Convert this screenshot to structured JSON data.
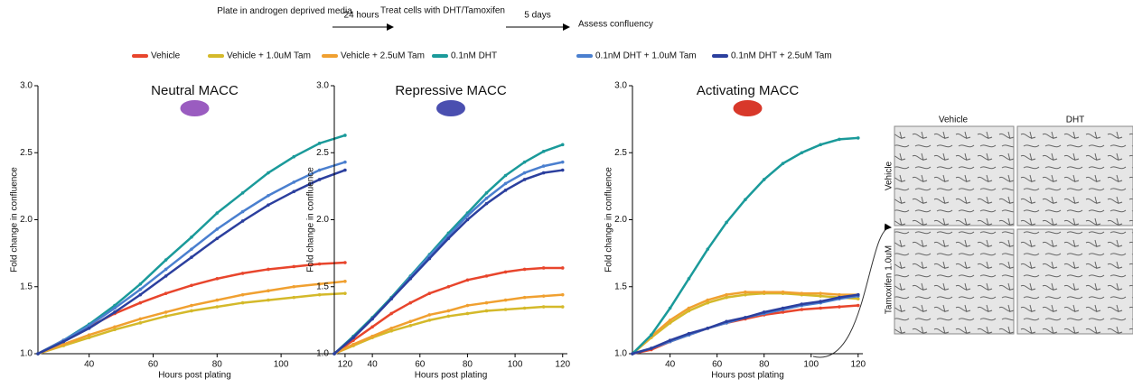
{
  "workflow": {
    "step1": "Plate in androgen deprived media",
    "step1_duration": "24 hours",
    "step2": "Treat cells with DHT/Tamoxifen",
    "step2_duration": "5 days",
    "step3": "Assess confluency"
  },
  "image_panel": {
    "columns": [
      "Vehicle",
      "DHT"
    ],
    "rows": [
      "Vehicle",
      "Tamoxifen 1.0uM"
    ]
  },
  "chart_data": [
    {
      "type": "line",
      "title": "Neutral MACC",
      "x_label": "Hours post plating",
      "y_label": "Fold change in confluence",
      "x": [
        24,
        32,
        40,
        48,
        56,
        64,
        72,
        80,
        88,
        96,
        104,
        112,
        120
      ],
      "xlim": [
        24,
        122
      ],
      "xticks": [
        40,
        60,
        80,
        100,
        120
      ],
      "ylim": [
        1,
        3
      ],
      "yticks": [
        {
          "value": 1,
          "label": "1.0"
        },
        {
          "value": 1.5,
          "label": "1.5"
        },
        {
          "value": 2,
          "label": "2.0"
        },
        {
          "value": 2.5,
          "label": "2.5"
        },
        {
          "value": 3,
          "label": "3.0"
        }
      ],
      "series": [
        {
          "name": "Vehicle",
          "color": "#e8452c",
          "values": [
            1.0,
            1.1,
            1.2,
            1.3,
            1.38,
            1.45,
            1.51,
            1.56,
            1.6,
            1.63,
            1.65,
            1.67,
            1.68
          ]
        },
        {
          "name": "Vehicle + 1.0uM Tam",
          "color": "#d4b92a",
          "values": [
            1.0,
            1.06,
            1.12,
            1.18,
            1.23,
            1.28,
            1.32,
            1.35,
            1.38,
            1.4,
            1.42,
            1.44,
            1.45
          ]
        },
        {
          "name": "Vehicle + 2.5uM Tam",
          "color": "#f0a030",
          "values": [
            1.0,
            1.07,
            1.14,
            1.2,
            1.26,
            1.31,
            1.36,
            1.4,
            1.44,
            1.47,
            1.5,
            1.52,
            1.54
          ]
        },
        {
          "name": "0.1nM DHT",
          "color": "#1a9a9a",
          "values": [
            1.0,
            1.1,
            1.22,
            1.36,
            1.52,
            1.7,
            1.87,
            2.05,
            2.2,
            2.35,
            2.47,
            2.57,
            2.63
          ]
        },
        {
          "name": "0.1nM DHT + 1.0uM Tam",
          "color": "#4a7fcf",
          "values": [
            1.0,
            1.1,
            1.21,
            1.34,
            1.48,
            1.63,
            1.78,
            1.93,
            2.06,
            2.18,
            2.28,
            2.37,
            2.43
          ]
        },
        {
          "name": "0.1nM DHT + 2.5uM Tam",
          "color": "#2b3f9e",
          "values": [
            1.0,
            1.09,
            1.19,
            1.31,
            1.44,
            1.58,
            1.72,
            1.86,
            1.99,
            2.11,
            2.21,
            2.3,
            2.37
          ]
        }
      ]
    },
    {
      "type": "line",
      "title": "Repressive MACC",
      "x_label": "Hours post plating",
      "y_label": "Fold change in confluence",
      "x": [
        24,
        32,
        40,
        48,
        56,
        64,
        72,
        80,
        88,
        96,
        104,
        112,
        120
      ],
      "xlim": [
        24,
        122
      ],
      "xticks": [
        40,
        60,
        80,
        100,
        120
      ],
      "ylim": [
        1,
        3
      ],
      "yticks": [
        {
          "value": 1,
          "label": "1.0"
        },
        {
          "value": 1.5,
          "label": "1.5"
        },
        {
          "value": 2,
          "label": "2.0"
        },
        {
          "value": 2.5,
          "label": "2.5"
        },
        {
          "value": 3,
          "label": "3.0"
        }
      ],
      "series": [
        {
          "color": "#e8452c",
          "values": [
            1.0,
            1.1,
            1.2,
            1.3,
            1.38,
            1.45,
            1.5,
            1.55,
            1.58,
            1.61,
            1.63,
            1.64,
            1.64
          ]
        },
        {
          "color": "#d4b92a",
          "values": [
            1.0,
            1.06,
            1.12,
            1.17,
            1.21,
            1.25,
            1.28,
            1.3,
            1.32,
            1.33,
            1.34,
            1.35,
            1.35
          ]
        },
        {
          "color": "#f0a030",
          "values": [
            1.0,
            1.07,
            1.13,
            1.19,
            1.24,
            1.29,
            1.32,
            1.36,
            1.38,
            1.4,
            1.42,
            1.43,
            1.44
          ]
        },
        {
          "color": "#1a9a9a",
          "values": [
            1.0,
            1.13,
            1.27,
            1.42,
            1.58,
            1.74,
            1.9,
            2.05,
            2.2,
            2.33,
            2.43,
            2.51,
            2.56
          ]
        },
        {
          "color": "#4a7fcf",
          "values": [
            1.0,
            1.12,
            1.26,
            1.41,
            1.57,
            1.73,
            1.88,
            2.03,
            2.16,
            2.27,
            2.35,
            2.4,
            2.43
          ]
        },
        {
          "color": "#2b3f9e",
          "values": [
            1.0,
            1.12,
            1.26,
            1.41,
            1.56,
            1.71,
            1.86,
            2.0,
            2.12,
            2.22,
            2.3,
            2.35,
            2.37
          ]
        }
      ]
    },
    {
      "type": "line",
      "title": "Activating MACC",
      "x_label": "Hours post plating",
      "y_label": "Fold change in confluence",
      "x": [
        24,
        32,
        40,
        48,
        56,
        64,
        72,
        80,
        88,
        96,
        104,
        112,
        120
      ],
      "xlim": [
        24,
        122
      ],
      "xticks": [
        40,
        60,
        80,
        100,
        120
      ],
      "ylim": [
        1,
        3
      ],
      "yticks": [
        {
          "value": 1,
          "label": "1.0"
        },
        {
          "value": 1.5,
          "label": "1.5"
        },
        {
          "value": 2,
          "label": "2.0"
        },
        {
          "value": 2.5,
          "label": "2.5"
        },
        {
          "value": 3,
          "label": "3.0"
        }
      ],
      "series": [
        {
          "color": "#e8452c",
          "values": [
            1.0,
            1.03,
            1.09,
            1.14,
            1.19,
            1.23,
            1.26,
            1.29,
            1.31,
            1.33,
            1.34,
            1.35,
            1.36
          ]
        },
        {
          "color": "#d4b92a",
          "values": [
            1.0,
            1.12,
            1.23,
            1.32,
            1.38,
            1.42,
            1.44,
            1.45,
            1.45,
            1.44,
            1.43,
            1.42,
            1.41
          ]
        },
        {
          "color": "#f0a030",
          "values": [
            1.0,
            1.13,
            1.25,
            1.34,
            1.4,
            1.44,
            1.46,
            1.46,
            1.46,
            1.45,
            1.45,
            1.44,
            1.44
          ]
        },
        {
          "color": "#1a9a9a",
          "values": [
            1.0,
            1.14,
            1.34,
            1.56,
            1.78,
            1.98,
            2.15,
            2.3,
            2.42,
            2.5,
            2.56,
            2.6,
            2.61
          ]
        },
        {
          "color": "#4a7fcf",
          "values": [
            1.0,
            1.04,
            1.09,
            1.14,
            1.19,
            1.23,
            1.27,
            1.3,
            1.33,
            1.36,
            1.38,
            1.41,
            1.43
          ]
        },
        {
          "color": "#2b3f9e",
          "values": [
            1.0,
            1.04,
            1.1,
            1.15,
            1.19,
            1.24,
            1.27,
            1.31,
            1.34,
            1.37,
            1.39,
            1.42,
            1.44
          ]
        }
      ]
    }
  ]
}
